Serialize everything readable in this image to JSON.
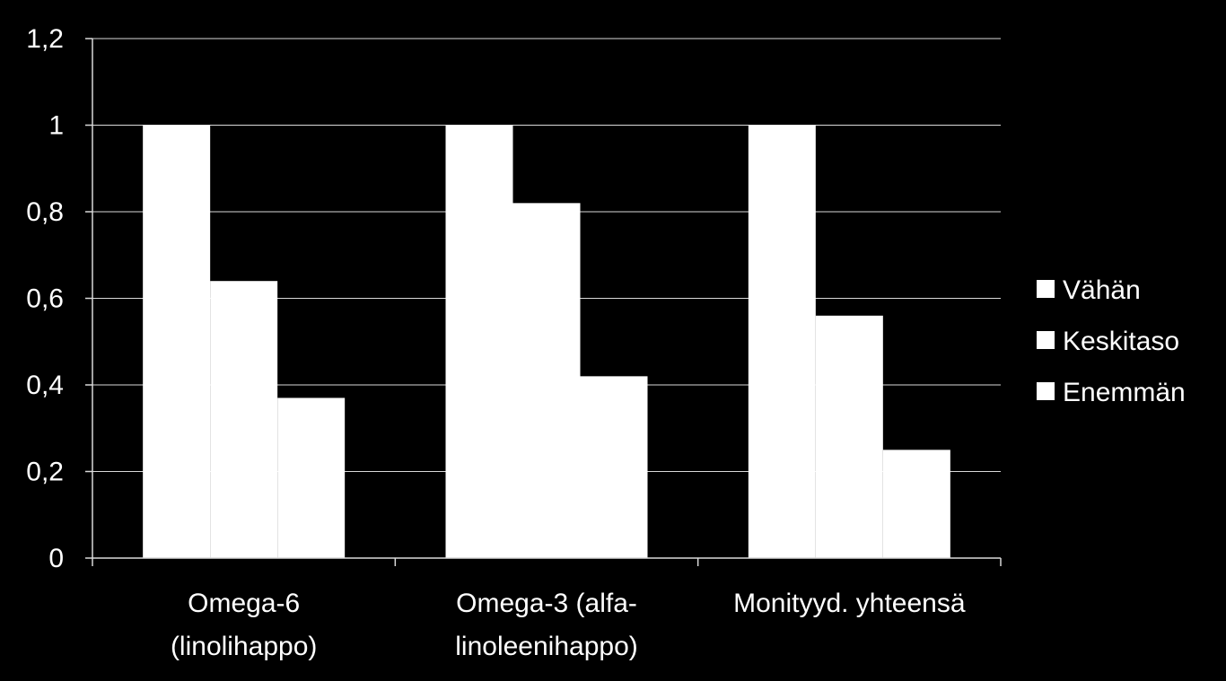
{
  "chart_data": {
    "type": "bar",
    "title": "",
    "xlabel": "",
    "ylabel": "",
    "categories": [
      [
        "Omega-6",
        "(linolihappo)"
      ],
      [
        "Omega-3 (alfa-",
        "linoleenihappo)"
      ],
      [
        "Monityyd. yhteensä"
      ]
    ],
    "series": [
      {
        "name": "Vähän",
        "values": [
          1.0,
          1.0,
          1.0
        ],
        "color": "#ffffff"
      },
      {
        "name": "Keskitaso",
        "values": [
          0.64,
          0.82,
          0.56
        ],
        "color": "#ffffff"
      },
      {
        "name": "Enemmän",
        "values": [
          0.37,
          0.42,
          0.25
        ],
        "color": "#ffffff"
      }
    ],
    "ylim": [
      0,
      1.2
    ],
    "yticks": [
      0,
      0.2,
      0.4,
      0.6,
      0.8,
      1,
      1.2
    ],
    "ytick_labels": [
      "0",
      "0,2",
      "0,4",
      "0,6",
      "0,8",
      "1",
      "1,2"
    ],
    "grid": true,
    "legend_position": "right",
    "background": "#000000",
    "gridline_color": "#d9d9d9"
  }
}
